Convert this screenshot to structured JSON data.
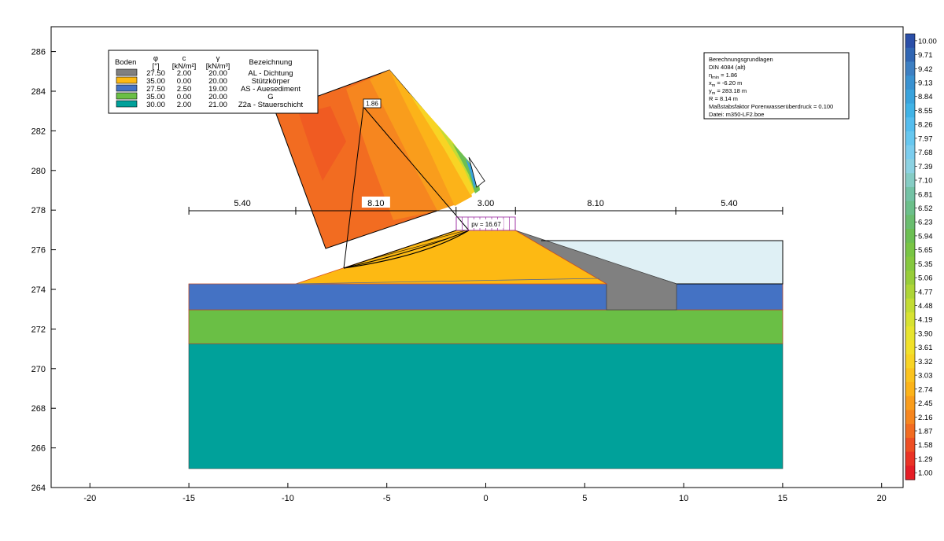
{
  "axes": {
    "x_ticks": [
      "-20",
      "-15",
      "-10",
      "-5",
      "0",
      "5",
      "10",
      "15",
      "20"
    ],
    "y_ticks": [
      "264",
      "266",
      "268",
      "270",
      "272",
      "274",
      "276",
      "278",
      "280",
      "282",
      "284",
      "286"
    ],
    "x_range": [
      -22,
      21
    ],
    "y_range": [
      264,
      287.4
    ]
  },
  "legend": {
    "headers": {
      "boden": "Boden",
      "phi_symbol": "φ",
      "phi_unit": "[°]",
      "c_symbol": "c",
      "c_unit": "[kN/m²]",
      "gamma_symbol": "γ",
      "gamma_unit": "[kN/m³]",
      "bezeichnung": "Bezeichnung"
    },
    "rows": [
      {
        "phi": "27.50",
        "c": "2.00",
        "gamma": "20.00",
        "name": "AL - Dichtung",
        "color": "#808080"
      },
      {
        "phi": "35.00",
        "c": "0.00",
        "gamma": "20.00",
        "name": "Stützkörper",
        "color": "#fdb913"
      },
      {
        "phi": "27.50",
        "c": "2.50",
        "gamma": "19.00",
        "name": "AS - Auesediment",
        "color": "#4472c4"
      },
      {
        "phi": "35.00",
        "c": "0.00",
        "gamma": "20.00",
        "name": "G",
        "color": "#6abf45"
      },
      {
        "phi": "30.00",
        "c": "2.00",
        "gamma": "21.00",
        "name": "Z2a - Stauerschicht",
        "color": "#00a19a"
      }
    ]
  },
  "info_box": {
    "line1": "Berechnungsgrundlagen",
    "line2": "DIN 4084 (alt)",
    "eta_label": "η",
    "eta_sub": "min",
    "eta_value": " = 1.86",
    "xm_label": "x",
    "xm_sub": "m",
    "xm_value": " = -6.20 m",
    "ym_label": "y",
    "ym_sub": "m",
    "ym_value": " = 283.18 m",
    "r_line": "R = 8.14 m",
    "factor_line": "Maßstabsfaktor Porenwasserüberdruck = 0.100",
    "file_line": "Datei: m350-LF2.boe"
  },
  "dimensions": {
    "labels": [
      "5.40",
      "8.10",
      "3.00",
      "8.10",
      "5.40"
    ],
    "positions": [
      -15,
      -9.6,
      -1.5,
      1.5,
      9.6,
      15
    ]
  },
  "annotations": {
    "fos_label": "1.86",
    "load_label": "pv = 16.67"
  },
  "colorbar": {
    "labels": [
      "10.00",
      "9.71",
      "9.42",
      "9.13",
      "8.84",
      "8.55",
      "8.26",
      "7.97",
      "7.68",
      "7.39",
      "7.10",
      "6.81",
      "6.52",
      "6.23",
      "5.94",
      "5.65",
      "5.35",
      "5.06",
      "4.77",
      "4.48",
      "4.19",
      "3.90",
      "3.61",
      "3.32",
      "3.03",
      "2.74",
      "2.45",
      "2.16",
      "1.87",
      "1.58",
      "1.29",
      "1.00"
    ],
    "colors": [
      "#2b4fa8",
      "#3166b3",
      "#3d7fc2",
      "#3a92d1",
      "#3aa3dc",
      "#41b3e6",
      "#55bdee",
      "#67c7ef",
      "#7ccdee",
      "#8dd2e2",
      "#86ccc4",
      "#74c2a5",
      "#6cbf8a",
      "#6abd6f",
      "#6cbf53",
      "#79c545",
      "#86c83f",
      "#98cd3a",
      "#aed537",
      "#c3dc34",
      "#d7e232",
      "#e7e42f",
      "#f2e12a",
      "#f8d424",
      "#fbc31e",
      "#fcb319",
      "#f99d1c",
      "#f6861f",
      "#f26c21",
      "#ee4f24",
      "#ea3325",
      "#e51d26"
    ]
  }
}
